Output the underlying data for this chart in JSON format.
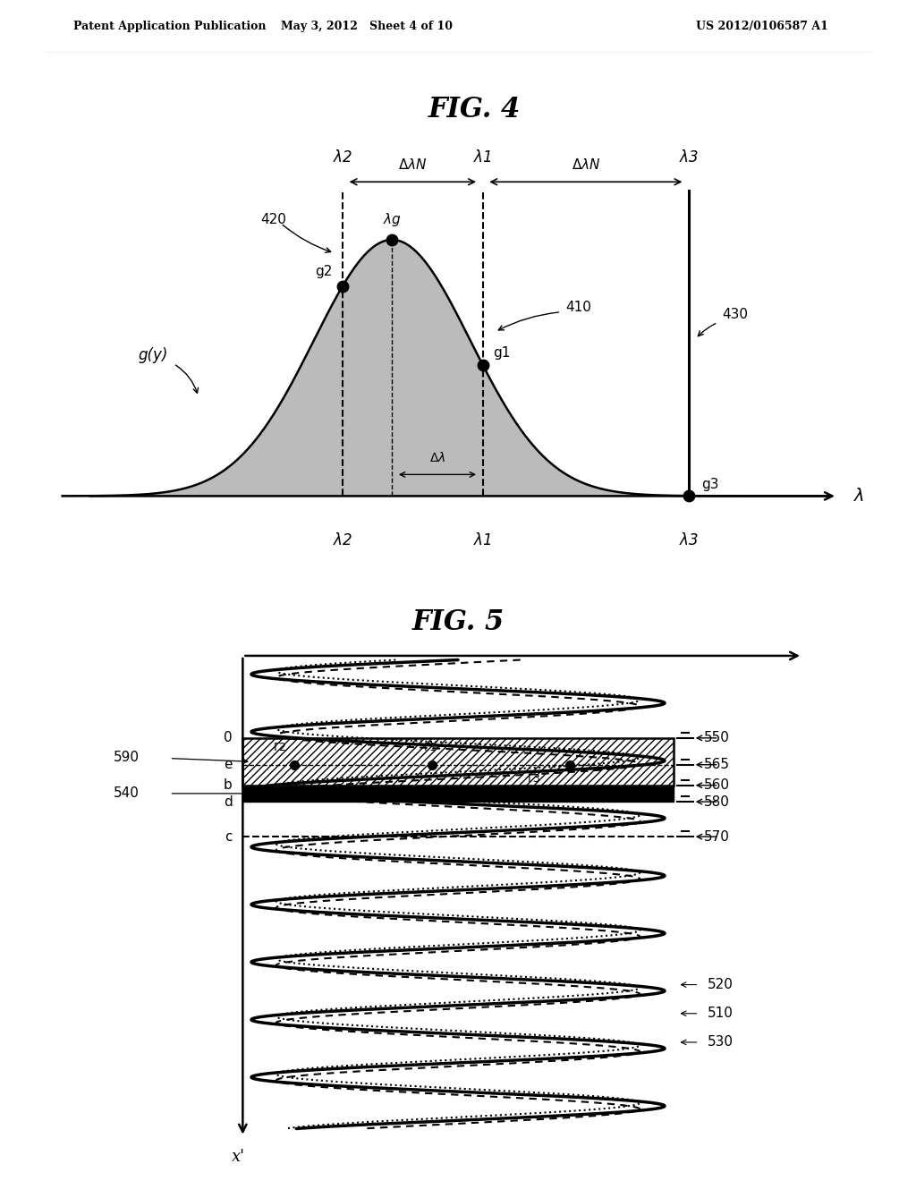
{
  "header_left": "Patent Application Publication",
  "header_mid": "May 3, 2012   Sheet 4 of 10",
  "header_right": "US 2012/0106587 A1",
  "fig4_title": "FIG. 4",
  "fig5_title": "FIG. 5",
  "bg_color": "#ffffff",
  "text_color": "#000000"
}
